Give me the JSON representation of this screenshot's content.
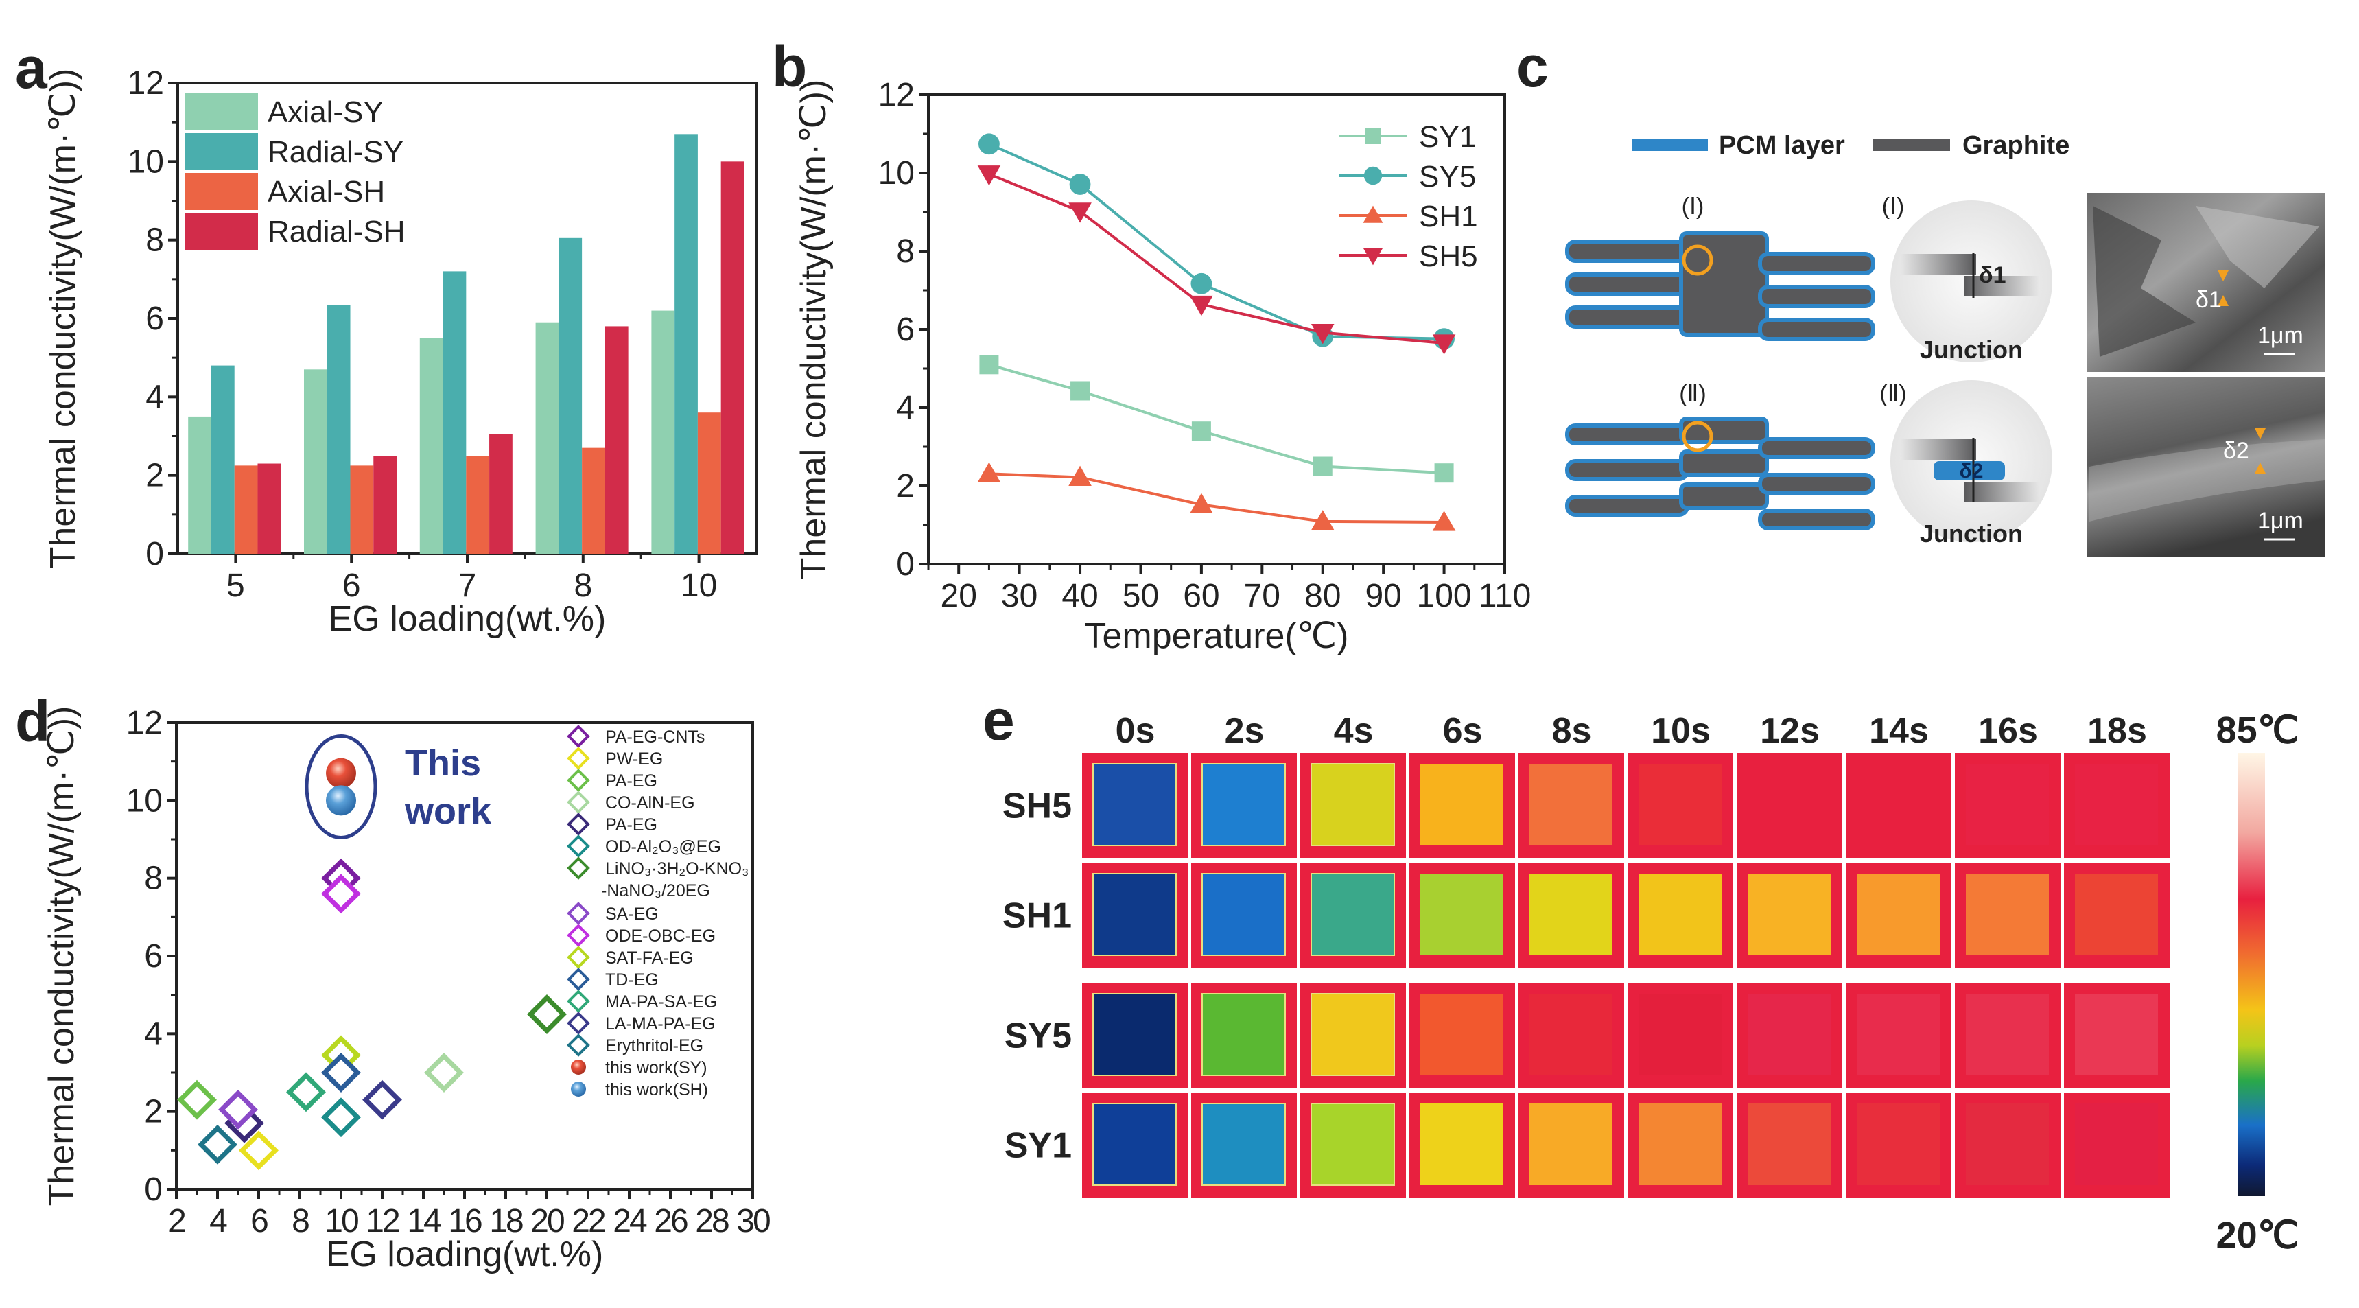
{
  "panels": {
    "a": "a",
    "b": "b",
    "c": "c",
    "d": "d",
    "e": "e"
  },
  "chart_data": [
    {
      "panel": "a",
      "type": "bar",
      "xlabel": "EG loading(wt.%)",
      "ylabel": "Thermal conductivity(W/(m·℃))",
      "categories": [
        "5",
        "6",
        "7",
        "8",
        "10"
      ],
      "ylim": [
        0,
        12
      ],
      "yticks": [
        0,
        2,
        4,
        6,
        8,
        10,
        12
      ],
      "legend_position": "top-left",
      "series": [
        {
          "name": "Axial-SY",
          "color": "#8fd0b0",
          "values": [
            3.5,
            4.7,
            5.5,
            5.9,
            6.2
          ]
        },
        {
          "name": "Radial-SY",
          "color": "#4aaead",
          "values": [
            4.8,
            6.35,
            7.2,
            8.05,
            10.7
          ]
        },
        {
          "name": "Axial-SH",
          "color": "#ec6444",
          "values": [
            2.25,
            2.25,
            2.5,
            2.7,
            3.6
          ]
        },
        {
          "name": "Radial-SH",
          "color": "#d22c4a",
          "values": [
            2.3,
            2.5,
            3.05,
            5.8,
            10.0
          ]
        }
      ]
    },
    {
      "panel": "b",
      "type": "line",
      "xlabel": "Temperature(℃)",
      "ylabel": "Thermal conductivity(W/(m·℃))",
      "x": [
        25,
        40,
        60,
        80,
        100
      ],
      "xlim": [
        15,
        110
      ],
      "xticks": [
        20,
        30,
        40,
        50,
        60,
        70,
        80,
        90,
        100,
        110
      ],
      "ylim": [
        0,
        12
      ],
      "yticks": [
        0,
        2,
        4,
        6,
        8,
        10,
        12
      ],
      "legend_position": "top-right",
      "series": [
        {
          "name": "SY1",
          "color": "#8fd0b0",
          "marker": "square",
          "values": [
            5.1,
            4.43,
            3.4,
            2.5,
            2.33
          ]
        },
        {
          "name": "SY5",
          "color": "#4aaead",
          "marker": "circle",
          "values": [
            10.74,
            9.71,
            7.17,
            5.82,
            5.76
          ]
        },
        {
          "name": "SH1",
          "color": "#ec6444",
          "marker": "triangle-up",
          "values": [
            2.31,
            2.22,
            1.52,
            1.09,
            1.07
          ]
        },
        {
          "name": "SH5",
          "color": "#d22c4a",
          "marker": "triangle-down",
          "values": [
            9.97,
            9.02,
            6.64,
            5.92,
            5.65
          ]
        }
      ]
    },
    {
      "panel": "d",
      "type": "scatter",
      "xlabel": "EG loading(wt.%)",
      "ylabel": "Thermal conductivity(W/(m·℃))",
      "xlim": [
        2,
        30
      ],
      "xticks": [
        2,
        4,
        6,
        8,
        10,
        12,
        14,
        16,
        18,
        20,
        22,
        24,
        26,
        28,
        30
      ],
      "ylim": [
        0,
        12
      ],
      "yticks": [
        0,
        2,
        4,
        6,
        8,
        10,
        12
      ],
      "legend_position": "top-right",
      "annotation": [
        "This",
        "work"
      ],
      "series": [
        {
          "name": "PA-EG-CNTs",
          "color": "#7a1fa0",
          "marker": "diamond",
          "points": [
            [
              10,
              8.0
            ]
          ]
        },
        {
          "name": "PW-EG",
          "color": "#e8e020",
          "marker": "diamond",
          "points": [
            [
              6,
              1.0
            ]
          ]
        },
        {
          "name": "PA-EG",
          "color": "#6cc04a",
          "marker": "diamond",
          "points": [
            [
              3,
              2.3
            ]
          ]
        },
        {
          "name": "CO-AlN-EG",
          "color": "#a8d8a0",
          "marker": "diamond",
          "points": [
            [
              15,
              3.0
            ]
          ]
        },
        {
          "name": "PA-EG",
          "color": "#3a2a78",
          "marker": "diamond",
          "points": [
            [
              5.3,
              1.7
            ]
          ]
        },
        {
          "name": "OD-Al₂O₃@EG",
          "color": "#1a8c8a",
          "marker": "diamond",
          "points": [
            [
              10,
              1.85
            ]
          ]
        },
        {
          "name": "LiNO₃·3H₂O-KNO₃",
          "name_line2": "-NaNO₃/20EG",
          "color": "#3c8c2c",
          "marker": "diamond",
          "points": [
            [
              20,
              4.5
            ]
          ]
        },
        {
          "name": "SA-EG",
          "color": "#8a4ac8",
          "marker": "diamond",
          "points": [
            [
              5,
              2.05
            ]
          ]
        },
        {
          "name": "ODE-OBC-EG",
          "color": "#c030e0",
          "marker": "diamond",
          "points": [
            [
              10,
              7.6
            ]
          ]
        },
        {
          "name": "SAT-FA-EG",
          "color": "#b8d820",
          "marker": "diamond",
          "points": [
            [
              10,
              3.45
            ]
          ]
        },
        {
          "name": "TD-EG",
          "color": "#2a5c98",
          "marker": "diamond",
          "points": [
            [
              10,
              3.0
            ]
          ]
        },
        {
          "name": "MA-PA-SA-EG",
          "color": "#30a878",
          "marker": "diamond",
          "points": [
            [
              8.3,
              2.5
            ]
          ]
        },
        {
          "name": "LA-MA-PA-EG",
          "color": "#3a3a8a",
          "marker": "diamond",
          "points": [
            [
              12,
              2.3
            ]
          ]
        },
        {
          "name": "Erythritol-EG",
          "color": "#1e7488",
          "marker": "diamond",
          "points": [
            [
              4,
              1.15
            ]
          ]
        },
        {
          "name": "this work(SY)",
          "color": "#e8503a",
          "marker": "sphere",
          "points": [
            [
              10,
              10.7
            ]
          ]
        },
        {
          "name": "this work(SH)",
          "color": "#5aa0d8",
          "marker": "sphere",
          "points": [
            [
              10,
              10.0
            ]
          ]
        }
      ]
    },
    {
      "panel": "e",
      "type": "heatmap",
      "columns": [
        "0s",
        "2s",
        "4s",
        "6s",
        "8s",
        "10s",
        "12s",
        "14s",
        "16s",
        "18s"
      ],
      "rows": [
        "SH5",
        "SH1",
        "SY5",
        "SY1"
      ],
      "colorbar": {
        "max_label": "85℃",
        "min_label": "20℃",
        "range": [
          20,
          85
        ]
      },
      "cell_colors": [
        [
          "#1a4fa8",
          "#1e7fd0",
          "#d8d21e",
          "#f8b21c",
          "#f2703a",
          "#ea2d38",
          "#e8203f",
          "#e8203f",
          "#e82244",
          "#e82244"
        ],
        [
          "#0f3a8a",
          "#1a6fc8",
          "#3aa88a",
          "#a8d030",
          "#e2d41a",
          "#f2c41a",
          "#f8b224",
          "#f89a2c",
          "#f47a36",
          "#ec4434"
        ],
        [
          "#0a2a6e",
          "#5ab832",
          "#f0c81c",
          "#f2582e",
          "#e8283a",
          "#e41f3c",
          "#e6264a",
          "#e82c4c",
          "#e8304e",
          "#ea3854"
        ],
        [
          "#0f3f98",
          "#1e8ec0",
          "#a8d42a",
          "#eed21a",
          "#f8aa26",
          "#f48632",
          "#ec4a3a",
          "#e82e3c",
          "#e42a40",
          "#e42044"
        ]
      ]
    }
  ],
  "diagram_c": {
    "legend": {
      "pcm_label": "PCM layer",
      "pcm_color": "#2e86c8",
      "graphite_label": "Graphite",
      "graphite_color": "#58585a"
    },
    "case1_label": "(Ⅰ)",
    "case2_label": "(Ⅱ)",
    "junction_label": "Junction",
    "delta1": "δ1",
    "delta2": "δ2",
    "scale_bar": "1μm"
  }
}
